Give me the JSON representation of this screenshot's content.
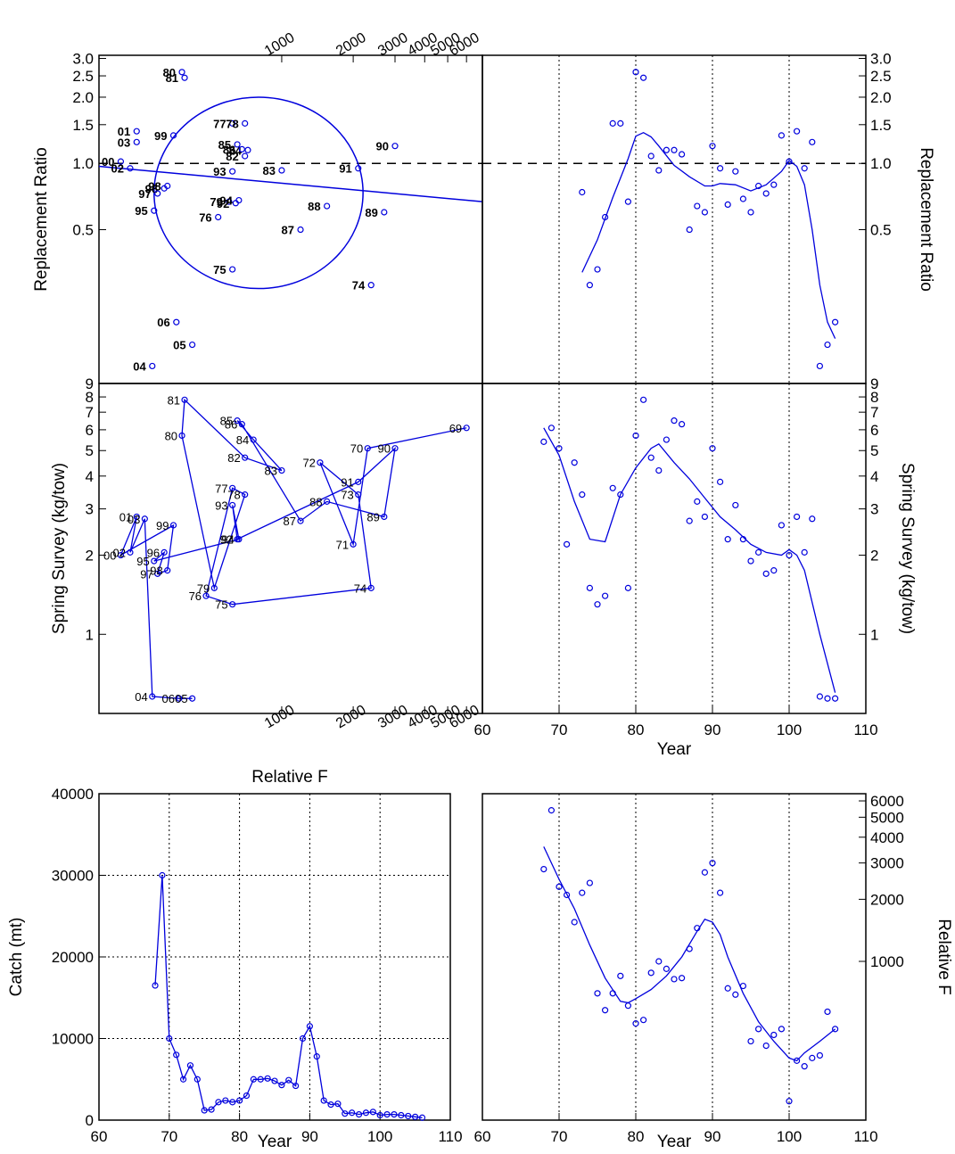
{
  "colors": {
    "series": "#0000dd",
    "axis": "#000000",
    "ref": "#000000"
  },
  "top_label": "Relative F",
  "chart_data": [
    {
      "id": "p1",
      "type": "scatter",
      "description_of_axes": "Relative F (log, top axis) vs Replacement Ratio (log)",
      "xlabel_top": "Relative F",
      "ylabel": "Replacement Ratio",
      "x_log": true,
      "y_log": true,
      "xlim": [
        170,
        7000
      ],
      "ylim": [
        0.1,
        3.1
      ],
      "x_ticks": [
        1000,
        2000,
        3000,
        4000,
        5000,
        6000
      ],
      "y_ticks": [
        0.5,
        1.0,
        1.5,
        2.0,
        2.5,
        3.0
      ],
      "y_tick_labels": [
        "0.5",
        "1.0",
        "1.5",
        "2.0",
        "2.5",
        "3.0"
      ],
      "points": [
        {
          "label": "00",
          "x": 210,
          "y": 1.02
        },
        {
          "label": "01",
          "x": 245,
          "y": 1.4
        },
        {
          "label": "02",
          "x": 230,
          "y": 0.95
        },
        {
          "label": "03",
          "x": 245,
          "y": 1.25
        },
        {
          "label": "04",
          "x": 285,
          "y": 0.12
        },
        {
          "label": "05",
          "x": 420,
          "y": 0.15
        },
        {
          "label": "06",
          "x": 360,
          "y": 0.19
        },
        {
          "label": "74",
          "x": 2380,
          "y": 0.28
        },
        {
          "label": "75",
          "x": 620,
          "y": 0.33
        },
        {
          "label": "76",
          "x": 540,
          "y": 0.57
        },
        {
          "label": "77",
          "x": 620,
          "y": 1.52
        },
        {
          "label": "78",
          "x": 700,
          "y": 1.52
        },
        {
          "label": "79",
          "x": 600,
          "y": 0.67
        },
        {
          "label": "80",
          "x": 380,
          "y": 2.6
        },
        {
          "label": "81",
          "x": 390,
          "y": 2.45
        },
        {
          "label": "82",
          "x": 700,
          "y": 1.08
        },
        {
          "label": "83",
          "x": 1000,
          "y": 0.93
        },
        {
          "label": "84",
          "x": 720,
          "y": 1.15
        },
        {
          "label": "85",
          "x": 650,
          "y": 1.22
        },
        {
          "label": "86",
          "x": 680,
          "y": 1.16
        },
        {
          "label": "87",
          "x": 1200,
          "y": 0.5
        },
        {
          "label": "88",
          "x": 1550,
          "y": 0.64
        },
        {
          "label": "89",
          "x": 2700,
          "y": 0.6
        },
        {
          "label": "90",
          "x": 3000,
          "y": 1.2
        },
        {
          "label": "91",
          "x": 2100,
          "y": 0.95
        },
        {
          "label": "92",
          "x": 640,
          "y": 0.66
        },
        {
          "label": "93",
          "x": 620,
          "y": 0.92
        },
        {
          "label": "94",
          "x": 660,
          "y": 0.68
        },
        {
          "label": "95",
          "x": 290,
          "y": 0.61
        },
        {
          "label": "96",
          "x": 320,
          "y": 0.77
        },
        {
          "label": "97",
          "x": 300,
          "y": 0.73
        },
        {
          "label": "98",
          "x": 330,
          "y": 0.79
        },
        {
          "label": "99",
          "x": 350,
          "y": 1.34
        }
      ],
      "regression_line": {
        "x": [
          170,
          7000
        ],
        "y": [
          0.97,
          0.67
        ]
      },
      "ellipse": {
        "x_center": 600,
        "y_center": 0.76,
        "x_left": 290,
        "x_right": 2200,
        "y_bottom": 0.27,
        "y_top": 2.0
      },
      "reference_hline": 1.0
    },
    {
      "id": "p2",
      "type": "line",
      "xlabel": "Year",
      "ylabel": "Replacement Ratio",
      "y_log": true,
      "xlim": [
        60,
        110
      ],
      "ylim": [
        0.1,
        3.1
      ],
      "y_ticks": [
        0.5,
        1.0,
        1.5,
        2.0,
        2.5,
        3.0
      ],
      "y_tick_labels": [
        "0.5",
        "1.0",
        "1.5",
        "2.0",
        "2.5",
        "3.0"
      ],
      "vlines": [
        70,
        80,
        90,
        100
      ],
      "reference_hline": 1.0,
      "points": {
        "x": [
          73,
          74,
          75,
          76,
          77,
          78,
          79,
          80,
          81,
          82,
          83,
          84,
          85,
          86,
          87,
          88,
          89,
          90,
          91,
          92,
          93,
          94,
          95,
          96,
          97,
          98,
          99,
          100,
          101,
          102,
          103,
          104,
          105,
          106
        ],
        "y": [
          0.74,
          0.28,
          0.33,
          0.57,
          1.52,
          1.52,
          0.67,
          2.6,
          2.45,
          1.08,
          0.93,
          1.15,
          1.15,
          1.1,
          0.5,
          0.64,
          0.6,
          1.2,
          0.95,
          0.65,
          0.92,
          0.69,
          0.6,
          0.79,
          0.73,
          0.8,
          1.34,
          1.02,
          1.4,
          0.95,
          1.25,
          0.12,
          0.15,
          0.19
        ]
      },
      "smooth": {
        "x": [
          73,
          75,
          77,
          79,
          80,
          81,
          82,
          83,
          85,
          87,
          89,
          90,
          91,
          93,
          95,
          97,
          99,
          100,
          101,
          102,
          103,
          104,
          105,
          106
        ],
        "y": [
          0.32,
          0.45,
          0.7,
          1.05,
          1.33,
          1.38,
          1.32,
          1.2,
          0.98,
          0.87,
          0.79,
          0.79,
          0.81,
          0.8,
          0.75,
          0.8,
          0.92,
          1.03,
          0.97,
          0.8,
          0.5,
          0.28,
          0.19,
          0.16
        ]
      }
    },
    {
      "id": "p3",
      "type": "line",
      "xlabel_bottom": "Relative F",
      "ylabel": "Spring Survey (kg/tow)",
      "x_log": true,
      "y_log": true,
      "xlim": [
        170,
        7000
      ],
      "ylim": [
        0.5,
        9
      ],
      "x_ticks": [
        1000,
        2000,
        3000,
        4000,
        5000,
        6000
      ],
      "y_ticks": [
        1,
        2,
        3,
        4,
        5,
        6,
        7,
        8,
        9
      ],
      "points": [
        {
          "label": "69",
          "x": 6000,
          "y": 6.1
        },
        {
          "label": "70",
          "x": 2300,
          "y": 5.1
        },
        {
          "label": "71",
          "x": 2000,
          "y": 2.2
        },
        {
          "label": "72",
          "x": 1450,
          "y": 4.5
        },
        {
          "label": "73",
          "x": 2100,
          "y": 3.4
        },
        {
          "label": "74",
          "x": 2380,
          "y": 1.5
        },
        {
          "label": "75",
          "x": 620,
          "y": 1.3
        },
        {
          "label": "76",
          "x": 480,
          "y": 1.4
        },
        {
          "label": "77",
          "x": 620,
          "y": 3.6
        },
        {
          "label": "78",
          "x": 700,
          "y": 3.4
        },
        {
          "label": "79",
          "x": 520,
          "y": 1.5
        },
        {
          "label": "80",
          "x": 380,
          "y": 5.7
        },
        {
          "label": "81",
          "x": 390,
          "y": 7.8
        },
        {
          "label": "82",
          "x": 700,
          "y": 4.7
        },
        {
          "label": "83",
          "x": 1000,
          "y": 4.2
        },
        {
          "label": "84",
          "x": 760,
          "y": 5.5
        },
        {
          "label": "85",
          "x": 650,
          "y": 6.5
        },
        {
          "label": "86",
          "x": 680,
          "y": 6.3
        },
        {
          "label": "87",
          "x": 1200,
          "y": 2.7
        },
        {
          "label": "88",
          "x": 1550,
          "y": 3.2
        },
        {
          "label": "89",
          "x": 2700,
          "y": 2.8
        },
        {
          "label": "90",
          "x": 3000,
          "y": 5.1
        },
        {
          "label": "91",
          "x": 2100,
          "y": 3.8
        },
        {
          "label": "92",
          "x": 650,
          "y": 2.3
        },
        {
          "label": "93",
          "x": 620,
          "y": 3.1
        },
        {
          "label": "94",
          "x": 660,
          "y": 2.3
        },
        {
          "label": "95",
          "x": 290,
          "y": 1.9
        },
        {
          "label": "96",
          "x": 320,
          "y": 2.05
        },
        {
          "label": "97",
          "x": 300,
          "y": 1.7
        },
        {
          "label": "98",
          "x": 330,
          "y": 1.75
        },
        {
          "label": "99",
          "x": 350,
          "y": 2.6
        },
        {
          "label": "00",
          "x": 210,
          "y": 2.0
        },
        {
          "label": "01",
          "x": 245,
          "y": 2.8
        },
        {
          "label": "02",
          "x": 230,
          "y": 2.05
        },
        {
          "label": "03",
          "x": 265,
          "y": 2.75
        },
        {
          "label": "04",
          "x": 285,
          "y": 0.58
        },
        {
          "label": "06",
          "x": 370,
          "y": 0.57
        },
        {
          "label": "05",
          "x": 420,
          "y": 0.57
        }
      ],
      "path_order": [
        "69",
        "70",
        "71",
        "72",
        "73",
        "74",
        "75",
        "76",
        "77",
        "78",
        "79",
        "80",
        "81",
        "82",
        "83",
        "84",
        "85",
        "86",
        "87",
        "88",
        "89",
        "90",
        "91",
        "92",
        "93",
        "94",
        "95",
        "96",
        "97",
        "98",
        "99",
        "00",
        "01",
        "02",
        "03",
        "04",
        "06",
        "05"
      ]
    },
    {
      "id": "p4",
      "type": "line",
      "xlabel": "Year",
      "ylabel": "Spring Survey (kg/tow)",
      "y_log": true,
      "xlim": [
        60,
        110
      ],
      "ylim": [
        0.5,
        9
      ],
      "x_ticks": [
        60,
        70,
        80,
        90,
        100,
        110
      ],
      "y_ticks": [
        1,
        2,
        3,
        4,
        5,
        6,
        7,
        8,
        9
      ],
      "vlines": [
        70,
        80,
        90,
        100
      ],
      "points": {
        "x": [
          68,
          69,
          70,
          71,
          72,
          73,
          74,
          75,
          76,
          77,
          78,
          79,
          80,
          81,
          82,
          83,
          84,
          85,
          86,
          87,
          88,
          89,
          90,
          91,
          92,
          93,
          94,
          95,
          96,
          97,
          98,
          99,
          100,
          101,
          102,
          103,
          104,
          105,
          106
        ],
        "y": [
          5.4,
          6.1,
          5.1,
          2.2,
          4.5,
          3.4,
          1.5,
          1.3,
          1.4,
          3.6,
          3.4,
          1.5,
          5.7,
          7.8,
          4.7,
          4.2,
          5.5,
          6.5,
          6.3,
          2.7,
          3.2,
          2.8,
          5.1,
          3.8,
          2.3,
          3.1,
          2.3,
          1.9,
          2.05,
          1.7,
          1.75,
          2.6,
          2.0,
          2.8,
          2.05,
          2.75,
          0.58,
          0.57,
          0.57
        ]
      },
      "smooth": {
        "x": [
          68,
          70,
          72,
          74,
          76,
          78,
          80,
          82,
          83,
          85,
          87,
          89,
          91,
          93,
          95,
          97,
          99,
          100,
          101,
          102,
          104,
          106
        ],
        "y": [
          6.1,
          4.8,
          3.2,
          2.3,
          2.25,
          3.4,
          4.3,
          5.1,
          5.3,
          4.5,
          3.9,
          3.3,
          2.8,
          2.5,
          2.2,
          2.05,
          2.0,
          2.1,
          2.0,
          1.75,
          1.0,
          0.6
        ]
      }
    },
    {
      "id": "p5",
      "type": "line",
      "xlabel": "Year",
      "ylabel": "Catch (mt)",
      "xlim": [
        60,
        110
      ],
      "ylim": [
        0,
        40000
      ],
      "x_ticks": [
        60,
        70,
        80,
        90,
        100,
        110
      ],
      "y_ticks": [
        0,
        10000,
        20000,
        30000,
        40000
      ],
      "grid": true,
      "x": [
        68,
        69,
        70,
        71,
        72,
        73,
        74,
        75,
        76,
        77,
        78,
        79,
        80,
        81,
        82,
        83,
        84,
        85,
        86,
        87,
        88,
        89,
        90,
        91,
        92,
        93,
        94,
        95,
        96,
        97,
        98,
        99,
        100,
        101,
        102,
        103,
        104,
        105,
        106
      ],
      "y": [
        16500,
        30000,
        10000,
        8000,
        5000,
        6700,
        5000,
        1200,
        1300,
        2200,
        2400,
        2200,
        2400,
        3000,
        5000,
        5000,
        5100,
        4800,
        4300,
        4900,
        4200,
        10000,
        11500,
        7800,
        2400,
        1900,
        2000,
        800,
        900,
        700,
        900,
        1000,
        600,
        700,
        700,
        600,
        500,
        400,
        300
      ]
    },
    {
      "id": "p6",
      "type": "line",
      "xlabel": "Year",
      "ylabel": "Relative F",
      "y_log": true,
      "xlim": [
        60,
        110
      ],
      "ylim": [
        170,
        6500
      ],
      "x_ticks": [
        60,
        70,
        80,
        90,
        100,
        110
      ],
      "y_ticks": [
        1000,
        2000,
        3000,
        4000,
        5000,
        6000
      ],
      "vlines": [
        70,
        80,
        90,
        100
      ],
      "points": {
        "x": [
          68,
          69,
          70,
          71,
          72,
          73,
          74,
          75,
          76,
          77,
          78,
          79,
          80,
          81,
          82,
          83,
          84,
          85,
          86,
          87,
          88,
          89,
          90,
          91,
          92,
          93,
          94,
          95,
          96,
          97,
          98,
          99,
          100,
          101,
          102,
          103,
          104,
          105,
          106
        ],
        "y": [
          2800,
          5400,
          2300,
          2100,
          1550,
          2150,
          2400,
          700,
          580,
          700,
          850,
          610,
          500,
          520,
          880,
          1000,
          920,
          820,
          830,
          1150,
          1450,
          2700,
          3000,
          2150,
          740,
          690,
          760,
          410,
          470,
          390,
          440,
          470,
          210,
          330,
          310,
          340,
          350,
          570,
          470
        ]
      },
      "smooth": {
        "x": [
          68,
          70,
          72,
          74,
          76,
          78,
          79,
          80,
          82,
          84,
          86,
          88,
          89,
          90,
          91,
          92,
          94,
          96,
          98,
          100,
          101,
          102,
          104,
          106
        ],
        "y": [
          3600,
          2500,
          1800,
          1200,
          830,
          640,
          630,
          660,
          730,
          850,
          1050,
          1400,
          1600,
          1550,
          1350,
          1050,
          700,
          510,
          410,
          340,
          330,
          360,
          410,
          470
        ]
      }
    }
  ]
}
